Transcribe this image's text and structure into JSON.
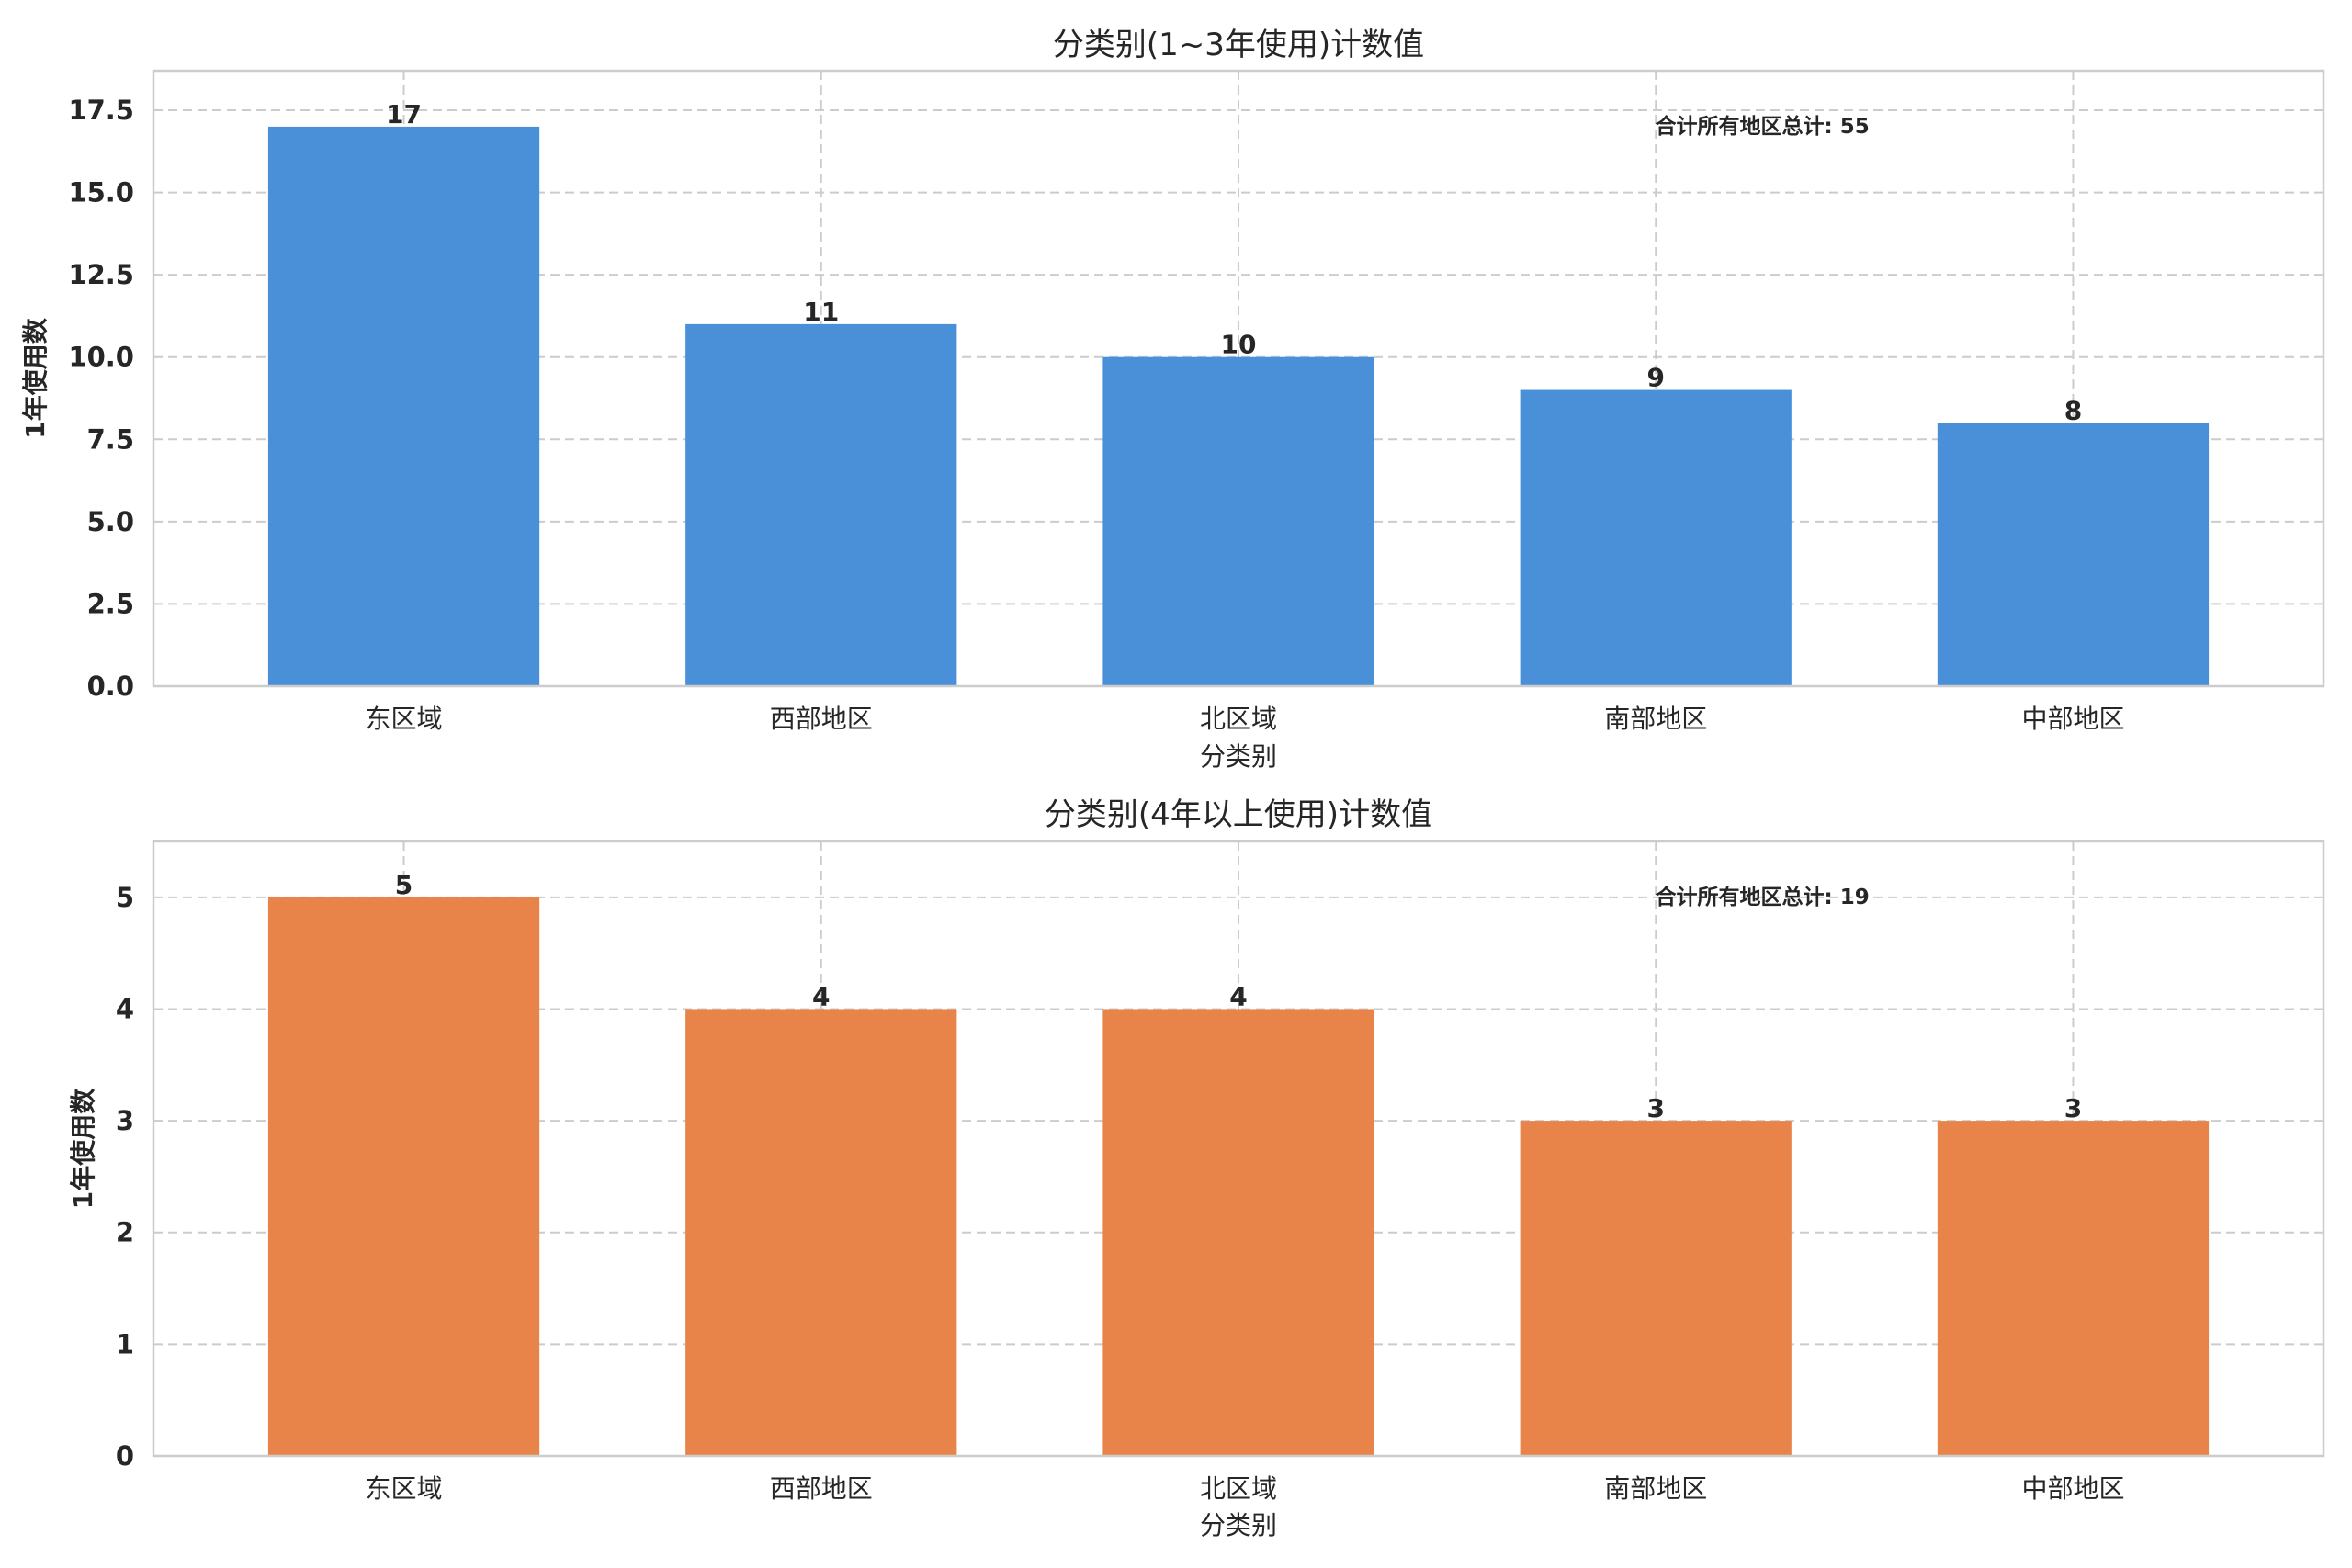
{
  "chart_data": [
    {
      "type": "bar",
      "title": "分类别(1~3年使用)计数值",
      "xlabel": "分类别",
      "ylabel": "1年使用数",
      "categories": [
        "东区域",
        "西部地区",
        "北区域",
        "南部地区",
        "中部地区"
      ],
      "values": [
        17,
        11,
        10,
        9,
        8
      ],
      "ylim": [
        0,
        18.7
      ],
      "yticks": [
        "0.0",
        "2.5",
        "5.0",
        "7.5",
        "10.0",
        "12.5",
        "15.0",
        "17.5"
      ],
      "ytick_values": [
        0,
        2.5,
        5,
        7.5,
        10,
        12.5,
        15,
        17.5
      ],
      "annotation": "合计所有地区总计: 55",
      "color": "#4a90d9",
      "grid": true
    },
    {
      "type": "bar",
      "title": "分类别(4年以上使用)计数值",
      "xlabel": "分类别",
      "ylabel": "1年使用数",
      "categories": [
        "东区域",
        "西部地区",
        "北区域",
        "南部地区",
        "中部地区"
      ],
      "values": [
        5,
        4,
        4,
        3,
        3
      ],
      "ylim": [
        0,
        5.5
      ],
      "yticks": [
        "0",
        "1",
        "2",
        "3",
        "4",
        "5"
      ],
      "ytick_values": [
        0,
        1,
        2,
        3,
        4,
        5
      ],
      "annotation": "合计所有地区总计: 19",
      "color": "#e8844a",
      "grid": true
    }
  ]
}
